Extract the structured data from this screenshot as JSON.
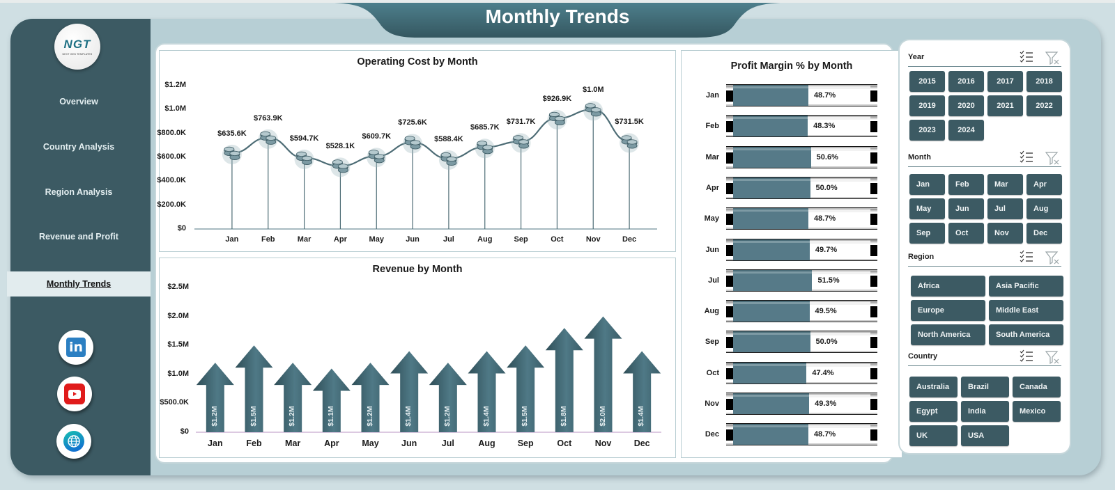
{
  "header": {
    "title": "Monthly Trends"
  },
  "logo": {
    "main": "NGT",
    "sub": "NEXT GEN TEMPLATES"
  },
  "sidebar": {
    "items": [
      {
        "label": "Overview",
        "active": false
      },
      {
        "label": "Country Analysis",
        "active": false
      },
      {
        "label": "Region Analysis",
        "active": false
      },
      {
        "label": "Revenue and Profit",
        "active": false
      },
      {
        "label": "Monthly Trends",
        "active": true
      }
    ],
    "social": [
      {
        "icon": "linkedin-icon",
        "glyph": "in"
      },
      {
        "icon": "youtube-icon"
      },
      {
        "icon": "globe-icon"
      }
    ]
  },
  "colors": {
    "sidebar": "#3c5a63",
    "accent": "#4a6f7b",
    "chip": "#3c5a63",
    "frame": "#b7cfd5",
    "bar_fill": "#567a88"
  },
  "filters": {
    "year": {
      "label": "Year",
      "options": [
        "2015",
        "2016",
        "2017",
        "2018",
        "2019",
        "2020",
        "2021",
        "2022",
        "2023",
        "2024"
      ]
    },
    "month": {
      "label": "Month",
      "options": [
        "Jan",
        "Feb",
        "Mar",
        "Apr",
        "May",
        "Jun",
        "Jul",
        "Aug",
        "Sep",
        "Oct",
        "Nov",
        "Dec"
      ]
    },
    "region": {
      "label": "Region",
      "options": [
        "Africa",
        "Asia Pacific",
        "Europe",
        "Middle East",
        "North America",
        "South America"
      ]
    },
    "country": {
      "label": "Country",
      "options": [
        "Australia",
        "Brazil",
        "Canada",
        "Egypt",
        "India",
        "Mexico",
        "UK",
        "USA"
      ]
    }
  },
  "chart_data": [
    {
      "type": "line",
      "title": "Operating Cost by Month",
      "categories": [
        "Jan",
        "Feb",
        "Mar",
        "Apr",
        "May",
        "Jun",
        "Jul",
        "Aug",
        "Sep",
        "Oct",
        "Nov",
        "Dec"
      ],
      "values": [
        635600,
        763900,
        594700,
        528100,
        609700,
        725600,
        588400,
        685700,
        731700,
        926900,
        1000000,
        731500
      ],
      "labels": [
        "$635.6K",
        "$763.9K",
        "$594.7K",
        "$528.1K",
        "$609.7K",
        "$725.6K",
        "$588.4K",
        "$685.7K",
        "$731.7K",
        "$926.9K",
        "$1.0M",
        "$731.5K"
      ],
      "yticks": [
        "$0",
        "$200.0K",
        "$400.0K",
        "$600.0K",
        "$800.0K",
        "$1.0M",
        "$1.2M"
      ],
      "ylim": [
        0,
        1200000
      ],
      "xlabel": "",
      "ylabel": "",
      "grid": false,
      "marker": "coin-stack-icon"
    },
    {
      "type": "bar",
      "title": "Revenue by Month",
      "categories": [
        "Jan",
        "Feb",
        "Mar",
        "Apr",
        "May",
        "Jun",
        "Jul",
        "Aug",
        "Sep",
        "Oct",
        "Nov",
        "Dec"
      ],
      "values": [
        1200000,
        1500000,
        1200000,
        1100000,
        1200000,
        1400000,
        1200000,
        1400000,
        1500000,
        1800000,
        2000000,
        1400000
      ],
      "labels": [
        "$1.2M",
        "$1.5M",
        "$1.2M",
        "$1.1M",
        "$1.2M",
        "$1.4M",
        "$1.2M",
        "$1.4M",
        "$1.5M",
        "$1.8M",
        "$2.0M",
        "$1.4M"
      ],
      "yticks": [
        "$0",
        "$500.0K",
        "$1.0M",
        "$1.5M",
        "$2.0M",
        "$2.5M"
      ],
      "ylim": [
        0,
        2500000
      ],
      "xlabel": "",
      "ylabel": "",
      "grid": false,
      "bar_shape": "arrow-up"
    },
    {
      "type": "bar",
      "orientation": "horizontal",
      "title": "Profit Margin % by Month",
      "categories": [
        "Jan",
        "Feb",
        "Mar",
        "Apr",
        "May",
        "Jun",
        "Jul",
        "Aug",
        "Sep",
        "Oct",
        "Nov",
        "Dec"
      ],
      "values": [
        48.7,
        48.3,
        50.6,
        50.0,
        48.7,
        49.7,
        51.5,
        49.5,
        50.0,
        47.4,
        49.3,
        48.7
      ],
      "labels": [
        "48.7%",
        "48.3%",
        "50.6%",
        "50.0%",
        "48.7%",
        "49.7%",
        "51.5%",
        "49.5%",
        "50.0%",
        "47.4%",
        "49.3%",
        "48.7%"
      ],
      "xlim": [
        0,
        100
      ],
      "grid": false
    }
  ]
}
